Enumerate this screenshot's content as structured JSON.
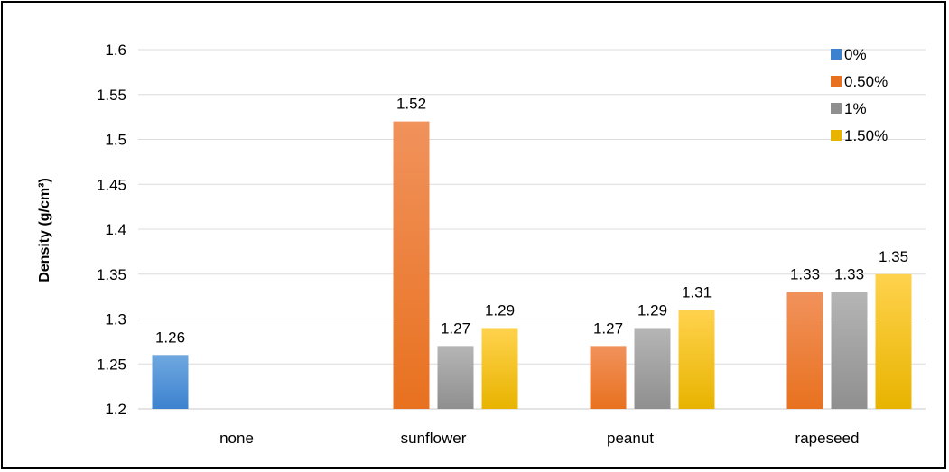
{
  "chart_data": {
    "type": "bar",
    "title": "",
    "xlabel": "",
    "ylabel": "Density (g/cm³)",
    "ylim": [
      1.2,
      1.6
    ],
    "yticks": [
      "1.2",
      "1.25",
      "1.3",
      "1.35",
      "1.4",
      "1.45",
      "1.5",
      "1.55",
      "1.6"
    ],
    "grid": "horizontal",
    "legend_position": "top-right",
    "categories": [
      "none",
      "sunflower",
      "peanut",
      "rapeseed"
    ],
    "series": [
      {
        "name": "0%",
        "values": [
          1.26,
          null,
          null,
          null
        ],
        "labels": [
          "1.26",
          "",
          "",
          ""
        ],
        "color_top": "#6fa8e0",
        "color_bottom": "#3d82cf"
      },
      {
        "name": "0.50%",
        "values": [
          null,
          1.52,
          1.27,
          1.33
        ],
        "labels": [
          "",
          "1.52",
          "1.27",
          "1.33"
        ],
        "color_top": "#f1925c",
        "color_bottom": "#e8711f"
      },
      {
        "name": "1%",
        "values": [
          null,
          1.27,
          1.29,
          1.33
        ],
        "labels": [
          "",
          "1.27",
          "1.29",
          "1.33"
        ],
        "color_top": "#b5b5b5",
        "color_bottom": "#8f8f8f"
      },
      {
        "name": "1.50%",
        "values": [
          null,
          1.29,
          1.31,
          1.35
        ],
        "labels": [
          "",
          "1.29",
          "1.31",
          "1.35"
        ],
        "color_top": "#ffd24d",
        "color_bottom": "#e8b400"
      }
    ]
  }
}
